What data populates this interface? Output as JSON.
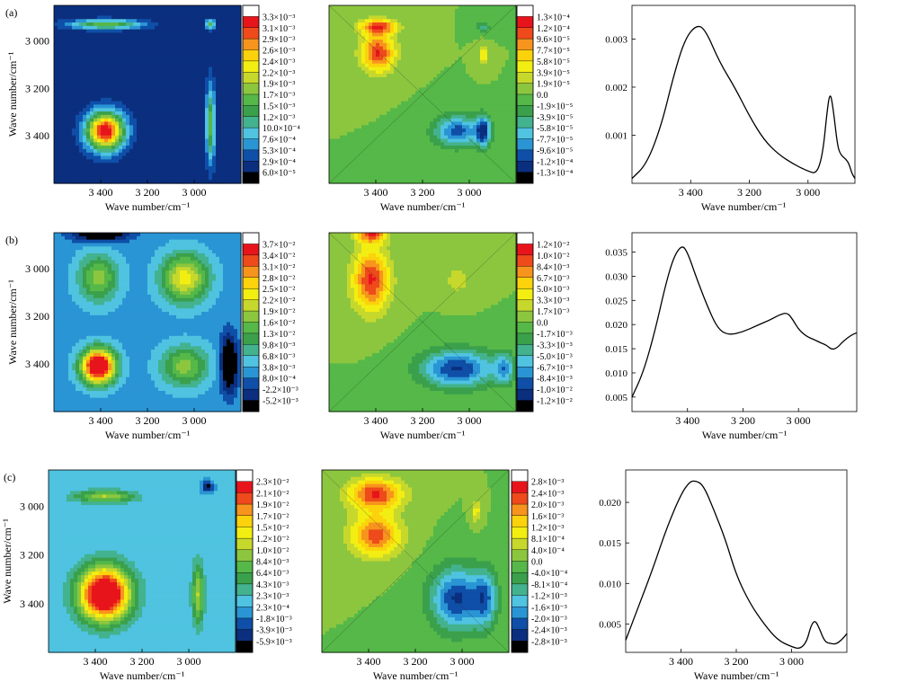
{
  "figure": {
    "rows": [
      {
        "label": "(a)",
        "sync": {
          "levels": [
            "3.3×10⁻³",
            "3.1×10⁻³",
            "2.9×10⁻³",
            "2.6×10⁻³",
            "2.4×10⁻³",
            "2.2×10⁻³",
            "1.9×10⁻³",
            "1.7×10⁻³",
            "1.5×10⁻³",
            "1.2×10⁻³",
            "10.0×10⁻⁴",
            "7.6×10⁻⁴",
            "5.3×10⁻⁴",
            "2.9×10⁻⁴",
            "6.0×10⁻⁵"
          ],
          "peaks": [
            {
              "x": 3380,
              "y": 3380,
              "amp": 1.0,
              "sx": 55,
              "sy": 55
            },
            {
              "x": 2930,
              "y": 3350,
              "amp": 0.45,
              "sx": 14,
              "sy": 110
            },
            {
              "x": 3380,
              "y": 2930,
              "amp": 0.45,
              "sx": 110,
              "sy": 14
            },
            {
              "x": 2930,
              "y": 2930,
              "amp": 0.42,
              "sx": 14,
              "sy": 14
            }
          ],
          "base": 0.06
        },
        "async": {
          "levels": [
            "1.3×10⁻⁴",
            "1.2×10⁻⁴",
            "9.6×10⁻⁵",
            "7.7×10⁻⁵",
            "5.8×10⁻⁵",
            "3.9×10⁻⁵",
            "1.9×10⁻⁵",
            "0.0",
            "-1.9×10⁻⁵",
            "-3.9×10⁻⁵",
            "-5.8×10⁻⁵",
            "-7.7×10⁻⁵",
            "-9.6×10⁻⁵",
            "-1.2×10⁻⁴",
            "-1.3×10⁻⁴"
          ],
          "peaks": [
            {
              "x": 3390,
              "y": 2940,
              "amp": 0.9,
              "sx": 55,
              "sy": 22
            },
            {
              "x": 3390,
              "y": 3050,
              "amp": 0.95,
              "sx": 50,
              "sy": 55
            },
            {
              "x": 2940,
              "y": 3060,
              "amp": 0.45,
              "sx": 14,
              "sy": 30
            },
            {
              "x": 3050,
              "y": 3380,
              "amp": -0.85,
              "sx": 70,
              "sy": 45
            },
            {
              "x": 2940,
              "y": 3380,
              "amp": -0.9,
              "sx": 22,
              "sy": 45
            },
            {
              "x": 2940,
              "y": 2940,
              "amp": -0.35,
              "sx": 20,
              "sy": 20
            }
          ],
          "base": 0.0
        },
        "spectrum": {
          "yticks": [
            "0.003",
            "0.002",
            "0.001"
          ],
          "ylim": [
            0,
            0.0037
          ],
          "x": [
            3600,
            3550,
            3500,
            3460,
            3420,
            3380,
            3350,
            3300,
            3250,
            3200,
            3150,
            3100,
            3050,
            3000,
            2970,
            2950,
            2935,
            2925,
            2915,
            2900,
            2890,
            2870,
            2860,
            2850,
            2840
          ],
          "y": [
            0.0001,
            0.0004,
            0.0012,
            0.0022,
            0.003,
            0.0033,
            0.0032,
            0.0025,
            0.002,
            0.0014,
            0.0009,
            0.0006,
            0.0004,
            0.00025,
            0.0002,
            0.0006,
            0.0015,
            0.0019,
            0.0016,
            0.0008,
            0.0006,
            0.0005,
            0.0004,
            0.0002,
            0.0001
          ]
        }
      },
      {
        "label": "(b)",
        "sync": {
          "levels": [
            "3.7×10⁻²",
            "3.4×10⁻²",
            "3.1×10⁻²",
            "2.8×10⁻²",
            "2.5×10⁻²",
            "2.2×10⁻²",
            "1.9×10⁻²",
            "1.6×10⁻²",
            "1.3×10⁻²",
            "9.8×10⁻³",
            "6.8×10⁻³",
            "3.8×10⁻³",
            "8.0×10⁻⁴",
            "-2.2×10⁻³",
            "-5.2×10⁻³"
          ],
          "peaks": [
            {
              "x": 3410,
              "y": 3410,
              "amp": 1.0,
              "sx": 50,
              "sy": 50
            },
            {
              "x": 3040,
              "y": 3040,
              "amp": 0.5,
              "sx": 70,
              "sy": 70
            },
            {
              "x": 3410,
              "y": 3040,
              "amp": 0.35,
              "sx": 60,
              "sy": 70
            },
            {
              "x": 3040,
              "y": 3410,
              "amp": 0.35,
              "sx": 70,
              "sy": 60
            },
            {
              "x": 2850,
              "y": 3400,
              "amp": -0.4,
              "sx": 25,
              "sy": 80
            },
            {
              "x": 3400,
              "y": 2850,
              "amp": -0.4,
              "sx": 80,
              "sy": 25
            }
          ],
          "base": 0.22
        },
        "async": {
          "levels": [
            "1.2×10⁻²",
            "1.0×10⁻²",
            "8.4×10⁻³",
            "6.7×10⁻³",
            "5.0×10⁻³",
            "3.3×10⁻³",
            "1.7×10⁻³",
            "0.0",
            "-1.7×10⁻³",
            "-3.3×10⁻³",
            "-5.0×10⁻³",
            "-6.7×10⁻³",
            "-8.4×10⁻³",
            "-1.0×10⁻²",
            "-1.2×10⁻²"
          ],
          "peaks": [
            {
              "x": 3420,
              "y": 3050,
              "amp": 0.95,
              "sx": 55,
              "sy": 90
            },
            {
              "x": 3420,
              "y": 2850,
              "amp": 0.9,
              "sx": 45,
              "sy": 30
            },
            {
              "x": 3050,
              "y": 3420,
              "amp": -0.95,
              "sx": 110,
              "sy": 55
            },
            {
              "x": 2850,
              "y": 3420,
              "amp": -0.6,
              "sx": 30,
              "sy": 45
            },
            {
              "x": 3050,
              "y": 3050,
              "amp": 0.25,
              "sx": 40,
              "sy": 40
            }
          ],
          "base": 0.0
        },
        "spectrum": {
          "yticks": [
            "0.035",
            "0.030",
            "0.025",
            "0.020",
            "0.015",
            "0.010",
            "0.005"
          ],
          "ylim": [
            0.002,
            0.039
          ],
          "x": [
            3600,
            3560,
            3520,
            3480,
            3450,
            3420,
            3400,
            3370,
            3330,
            3290,
            3250,
            3200,
            3150,
            3100,
            3070,
            3040,
            3020,
            3000,
            2970,
            2940,
            2920,
            2900,
            2880,
            2860,
            2840,
            2810,
            2790
          ],
          "y": [
            0.005,
            0.01,
            0.018,
            0.028,
            0.034,
            0.0365,
            0.035,
            0.03,
            0.024,
            0.019,
            0.0178,
            0.0185,
            0.0198,
            0.021,
            0.022,
            0.0225,
            0.021,
            0.019,
            0.0175,
            0.0168,
            0.0162,
            0.0158,
            0.0148,
            0.0152,
            0.0165,
            0.0178,
            0.0183
          ]
        }
      },
      {
        "label": "(c)",
        "sync": {
          "levels": [
            "2.3×10⁻²",
            "2.1×10⁻²",
            "1.9×10⁻²",
            "1.7×10⁻²",
            "1.5×10⁻²",
            "1.2×10⁻²",
            "1.0×10⁻²",
            "8.4×10⁻³",
            "6.4×10⁻³",
            "4.3×10⁻³",
            "2.3×10⁻³",
            "2.3×10⁻⁴",
            "-1.8×10⁻³",
            "-3.9×10⁻³",
            "-5.9×10⁻³"
          ],
          "peaks": [
            {
              "x": 3360,
              "y": 3360,
              "amp": 1.0,
              "sx": 75,
              "sy": 75
            },
            {
              "x": 2960,
              "y": 3360,
              "amp": 0.35,
              "sx": 18,
              "sy": 90
            },
            {
              "x": 3360,
              "y": 2960,
              "amp": 0.35,
              "sx": 90,
              "sy": 18
            },
            {
              "x": 2920,
              "y": 2920,
              "amp": -0.25,
              "sx": 15,
              "sy": 15
            }
          ],
          "base": 0.26
        },
        "async": {
          "levels": [
            "2.8×10⁻³",
            "2.4×10⁻³",
            "2.0×10⁻³",
            "1.6×10⁻³",
            "1.2×10⁻³",
            "8.1×10⁻⁴",
            "4.0×10⁻⁴",
            "0.0",
            "-4.0×10⁻⁴",
            "-8.1×10⁻⁴",
            "-1.2×10⁻³",
            "-1.6×10⁻³",
            "-2.0×10⁻³",
            "-2.4×10⁻³",
            "-2.8×10⁻³"
          ],
          "peaks": [
            {
              "x": 3370,
              "y": 2950,
              "amp": 0.95,
              "sx": 80,
              "sy": 45
            },
            {
              "x": 3370,
              "y": 3120,
              "amp": 0.85,
              "sx": 75,
              "sy": 60
            },
            {
              "x": 2940,
              "y": 3020,
              "amp": 0.4,
              "sx": 14,
              "sy": 30
            },
            {
              "x": 3020,
              "y": 3380,
              "amp": -0.95,
              "sx": 80,
              "sy": 90
            },
            {
              "x": 2900,
              "y": 3380,
              "amp": -0.6,
              "sx": 35,
              "sy": 80
            }
          ],
          "base": 0.0
        },
        "spectrum": {
          "yticks": [
            "0.020",
            "0.015",
            "0.010",
            "0.005"
          ],
          "ylim": [
            0.0015,
            0.024
          ],
          "x": [
            3600,
            3550,
            3500,
            3450,
            3400,
            3370,
            3350,
            3320,
            3280,
            3240,
            3200,
            3150,
            3100,
            3050,
            3000,
            2970,
            2945,
            2930,
            2915,
            2900,
            2880,
            2860,
            2840,
            2820,
            2800
          ],
          "y": [
            0.003,
            0.0075,
            0.012,
            0.017,
            0.021,
            0.0225,
            0.0227,
            0.0222,
            0.019,
            0.0155,
            0.011,
            0.0075,
            0.005,
            0.003,
            0.0022,
            0.0019,
            0.0028,
            0.0048,
            0.0055,
            0.0045,
            0.0028,
            0.0026,
            0.0025,
            0.003,
            0.0038
          ]
        }
      }
    ],
    "xlabel": "Wave number/cm⁻¹",
    "ylabel": "Wave number/cm⁻¹",
    "map_ticks": [
      "3 400",
      "3 200",
      "3 000"
    ],
    "map_tick_values": [
      3400,
      3200,
      3000
    ],
    "spectrum_ticks": [
      "3 400",
      "3 200",
      "3 000"
    ],
    "colorbar_colors": [
      "#ffffff",
      "#e8141c",
      "#ee4a1b",
      "#f7941d",
      "#fbd20c",
      "#f3ee12",
      "#c7d82c",
      "#8cc63f",
      "#55b848",
      "#3aa04b",
      "#43b28e",
      "#4fc3e0",
      "#2a95d4",
      "#0f4fa8",
      "#0b2f7e",
      "#000000"
    ],
    "chart_data": [
      {
        "type": "heatmap",
        "panel": "a-synchronous",
        "xlim": [
          3600,
          2800
        ],
        "ylim": [
          2850,
          3600
        ]
      },
      {
        "type": "heatmap",
        "panel": "a-asynchronous",
        "xlim": [
          3600,
          2800
        ],
        "ylim": [
          2850,
          3600
        ]
      },
      {
        "type": "line",
        "panel": "a-spectrum",
        "xlim": [
          3600,
          2840
        ],
        "xlabel": "Wave number/cm⁻¹"
      },
      {
        "type": "heatmap",
        "panel": "b-synchronous",
        "xlim": [
          3600,
          2800
        ],
        "ylim": [
          2850,
          3600
        ]
      },
      {
        "type": "heatmap",
        "panel": "b-asynchronous",
        "xlim": [
          3600,
          2800
        ],
        "ylim": [
          2850,
          3600
        ]
      },
      {
        "type": "line",
        "panel": "b-spectrum",
        "xlim": [
          3600,
          2790
        ],
        "xlabel": "Wave number/cm⁻¹"
      },
      {
        "type": "heatmap",
        "panel": "c-synchronous",
        "xlim": [
          3600,
          2800
        ],
        "ylim": [
          2850,
          3600
        ]
      },
      {
        "type": "heatmap",
        "panel": "c-asynchronous",
        "xlim": [
          3600,
          2800
        ],
        "ylim": [
          2850,
          3600
        ]
      },
      {
        "type": "line",
        "panel": "c-spectrum",
        "xlim": [
          3600,
          2800
        ],
        "xlabel": "Wave number/cm⁻¹"
      }
    ]
  }
}
